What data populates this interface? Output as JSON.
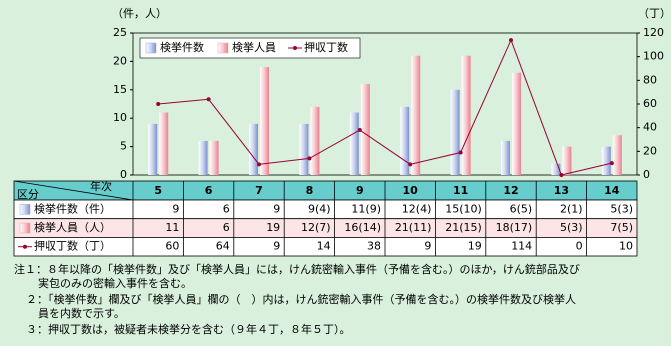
{
  "chart_data": {
    "type": "bar",
    "y_label": "（件，人）",
    "y2_label": "（丁）",
    "categories": [
      "5",
      "6",
      "7",
      "8",
      "9",
      "10",
      "11",
      "12",
      "13",
      "14"
    ],
    "series": [
      {
        "name": "検挙件数",
        "color": "#99aadd",
        "values": [
          9,
          6,
          9,
          9,
          11,
          12,
          15,
          6,
          2,
          5
        ],
        "value_labels": [
          "9",
          "6",
          "9",
          "9(4)",
          "11(9)",
          "12(4)",
          "15(10)",
          "6(5)",
          "2(1)",
          "5(3)"
        ]
      },
      {
        "name": "検挙人員",
        "color": "#f2a0a8",
        "values": [
          11,
          6,
          19,
          12,
          16,
          21,
          21,
          18,
          5,
          7
        ],
        "value_labels": [
          "11",
          "6",
          "19",
          "12(7)",
          "16(14)",
          "21(11)",
          "21(15)",
          "18(17)",
          "5(3)",
          "7(5)"
        ]
      },
      {
        "name": "押収丁数",
        "color": "#990033",
        "type": "line",
        "axis": "y2",
        "values": [
          60,
          64,
          9,
          14,
          38,
          9,
          19,
          114,
          0,
          10
        ]
      }
    ],
    "ylim": [
      0,
      25
    ],
    "yticks": [
      0,
      5,
      10,
      15,
      20,
      25
    ],
    "y2lim": [
      0,
      120
    ],
    "y2ticks": [
      0,
      20,
      40,
      60,
      80,
      100,
      120
    ],
    "grid": false,
    "table_header": {
      "column": "年次",
      "row": "区分"
    },
    "row_labels": [
      "検挙件数（件）",
      "検挙人員（人）",
      "押収丁数（丁）"
    ],
    "notes": [
      "注１：８年以降の「検挙件数」及び「検挙人員」には，けん銃密輸入事件（予備を含む。）のほか，けん銃部品及び",
      "実包のみの密輸入事件を含む。",
      "２：「検挙件数」欄及び「検挙人員」欄の（　）内は，けん銃密輸入事件（予備を含む。）の検挙件数及び検挙人",
      "員を内数で示す。",
      "３：押収丁数は，被疑者未検挙分を含む（９年４丁，８年５丁）。"
    ]
  }
}
